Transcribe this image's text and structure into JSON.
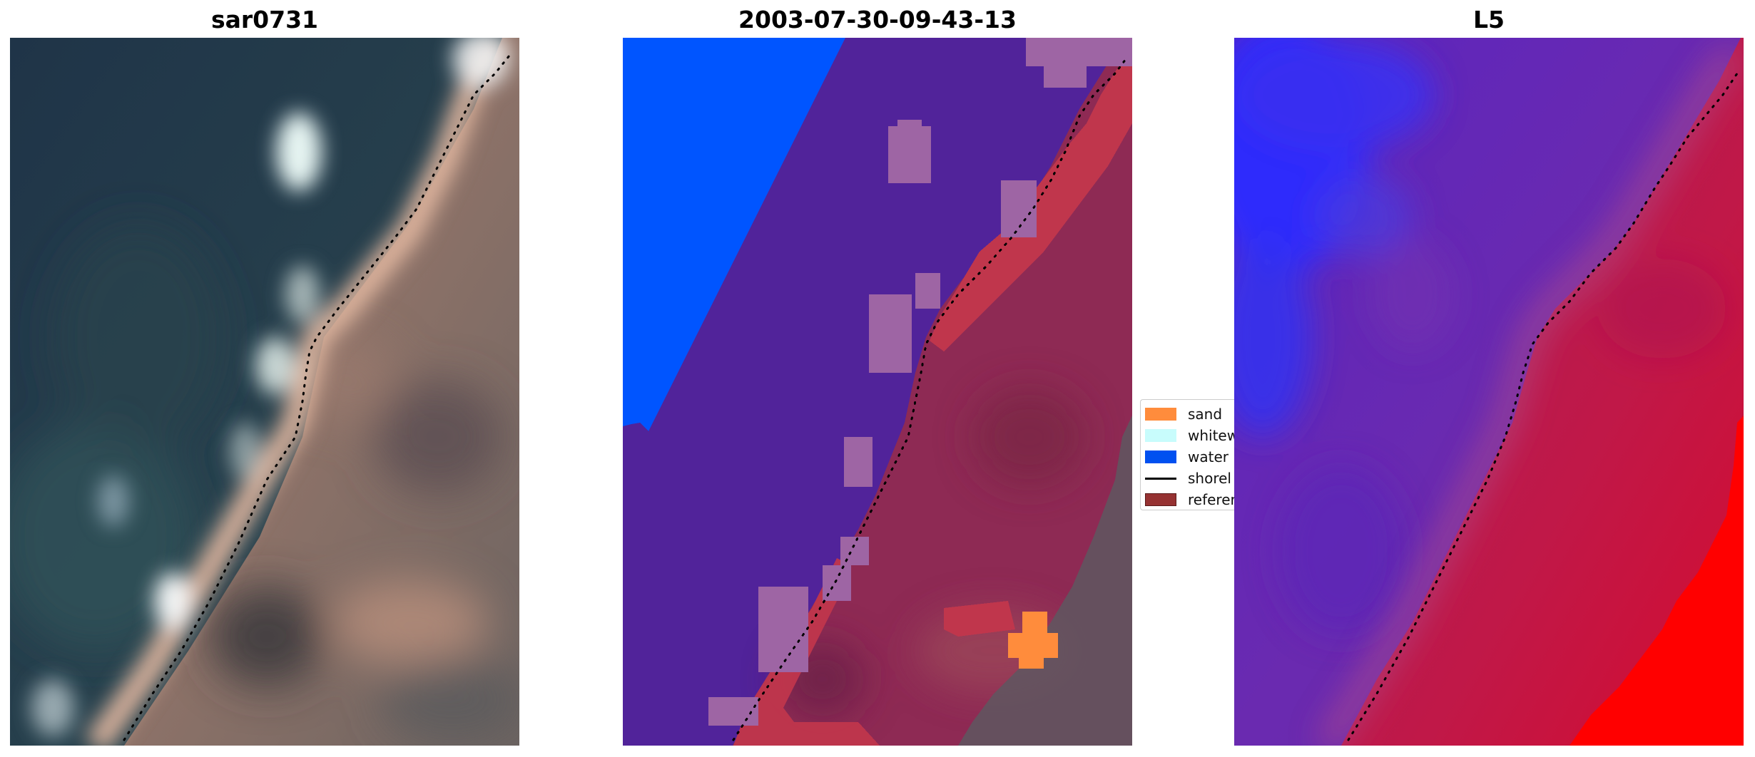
{
  "panels": [
    {
      "title": "sar0731"
    },
    {
      "title": "2003-07-30-09-43-13"
    },
    {
      "title": "L5"
    }
  ],
  "legend": {
    "items": [
      {
        "label": "sand",
        "color": "#ff8c3c"
      },
      {
        "label": "whitew",
        "color": "#c8fcfc"
      },
      {
        "label": "water",
        "color": "#0050f0"
      },
      {
        "label": "shorel",
        "color": "#000000"
      },
      {
        "label": "referer",
        "color": "#963232"
      }
    ]
  },
  "colors": {
    "water_dark": "#22364a",
    "sand_beige": "#d6a88e",
    "classified_purple": "#51239a",
    "classified_water": "#0055ff",
    "classified_land": "#8e2a54",
    "label_red": "#c0364c",
    "whitewater_pink": "#9e65a4",
    "index_blue": "#1a1aff",
    "index_red": "#ff0000"
  }
}
